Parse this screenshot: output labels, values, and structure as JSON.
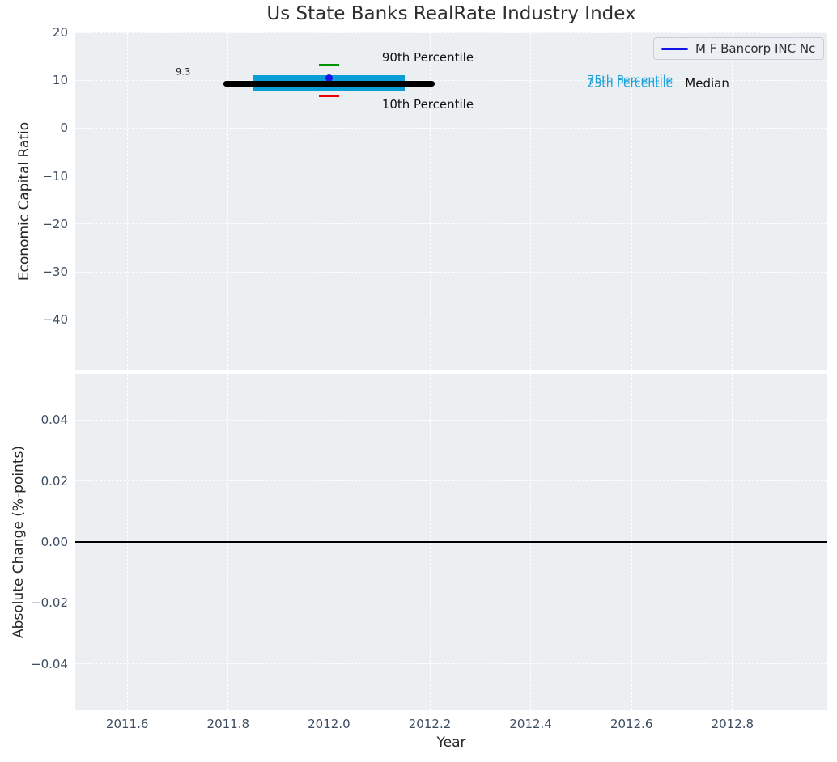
{
  "figure": {
    "title": "Us State Banks RealRate Industry Index"
  },
  "legend": {
    "label": "M F Bancorp INC Nc",
    "line_color": "#1414E8"
  },
  "colors": {
    "plot_bg": "#ECEFF1",
    "grid": "#FFFFFF",
    "box_fill": "#0A9ED7",
    "median_line": "#000000",
    "p90_cap": "#009200",
    "p10_cap": "#EC0000",
    "whisker": "#7A7A7A",
    "company_point": "#1414E8",
    "tick_label": "#3D4D61",
    "zero_line": "#000000",
    "percentile_text": "#1BA2DB"
  },
  "chart_data": [
    {
      "type": "box",
      "title": "Us State Banks RealRate Industry Index",
      "xlabel": "Year",
      "ylabel": "Economic Capital Ratio",
      "xlim": [
        2011.497,
        2012.988
      ],
      "ylim": [
        -50.6,
        20
      ],
      "xticks": [
        2011.6,
        2011.8,
        2012.0,
        2012.2,
        2012.4,
        2012.6,
        2012.8
      ],
      "xtick_labels": [
        "2011.6",
        "2011.8",
        "2012.0",
        "2012.2",
        "2012.4",
        "2012.6",
        "2012.8"
      ],
      "yticks": [
        20,
        10,
        0,
        -10,
        -20,
        -30,
        -40
      ],
      "ytick_labels": [
        "20",
        "10",
        "0",
        "−10",
        "−20",
        "−30",
        "−40"
      ],
      "grid": "white-dashed",
      "legend_position": "upper right",
      "box": {
        "x_center": 2012.0,
        "box_x_left": 2011.85,
        "box_x_right": 2012.15,
        "median_x_left": 2011.79,
        "median_x_right": 2012.21,
        "cap_half_width": 0.02,
        "p90": 13.2,
        "p75": 11.0,
        "median": 9.3,
        "p25": 7.8,
        "p10": 6.7
      },
      "company_point": {
        "name": "M F Bancorp INC Nc",
        "x": 2012.0,
        "y": 10.5
      },
      "annotations": [
        {
          "id": "median-value-label",
          "text": "9.3",
          "x": 2011.696,
          "y": 11.7,
          "size": 11.5,
          "color": "#1a1a1a"
        },
        {
          "id": "p90-label",
          "text": "90th Percentile",
          "x": 2012.105,
          "y": 14.8,
          "size": 15,
          "color": "#111111"
        },
        {
          "id": "p10-label",
          "text": "10th Percentile",
          "x": 2012.105,
          "y": 5.0,
          "size": 15,
          "color": "#111111"
        },
        {
          "id": "p75-label",
          "text": "75th Percentile",
          "x": 2012.512,
          "y": 9.9,
          "size": 14,
          "color": "#1BA2DB"
        },
        {
          "id": "p25-label",
          "text": "25th Percentile",
          "x": 2012.512,
          "y": 9.2,
          "size": 14,
          "color": "#1BA2DB"
        },
        {
          "id": "median-label",
          "text": "Median",
          "x": 2012.706,
          "y": 9.35,
          "size": 15,
          "color": "#111111"
        }
      ]
    },
    {
      "type": "line",
      "ylabel": "Absolute Change (%-points)",
      "xlim": [
        2011.497,
        2012.988
      ],
      "ylim": [
        -0.0552,
        0.0552
      ],
      "yticks": [
        0.04,
        0.02,
        0.0,
        -0.02,
        -0.04
      ],
      "ytick_labels": [
        "0.04",
        "0.02",
        "0.00",
        "−0.02",
        "−0.04"
      ],
      "zero_line": 0.0,
      "grid": "white-dashed",
      "series": []
    }
  ]
}
